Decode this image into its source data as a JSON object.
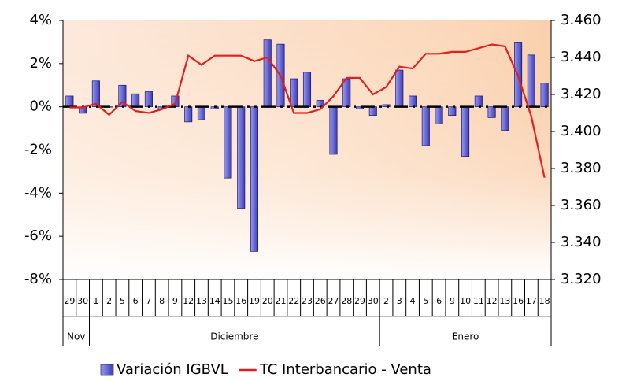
{
  "chart_data": {
    "type": "bar-line",
    "categories": [
      "29",
      "30",
      "1",
      "2",
      "5",
      "6",
      "7",
      "8",
      "9",
      "12",
      "13",
      "14",
      "15",
      "16",
      "19",
      "20",
      "21",
      "22",
      "23",
      "26",
      "27",
      "28",
      "29",
      "30",
      "2",
      "3",
      "4",
      "5",
      "6",
      "9",
      "10",
      "11",
      "12",
      "13",
      "16",
      "17",
      "18"
    ],
    "groups": [
      "Nov",
      "Diciembre",
      "Enero"
    ],
    "series": [
      {
        "name": "Variación IGBVL",
        "type": "bar",
        "color": "#5a5ad0",
        "values": [
          0.5,
          -0.3,
          1.2,
          0.0,
          1.0,
          0.6,
          0.7,
          -0.1,
          0.5,
          -0.7,
          -0.6,
          -0.1,
          -3.3,
          -4.7,
          -6.7,
          3.1,
          2.9,
          1.3,
          1.6,
          0.3,
          -2.2,
          1.3,
          -0.1,
          -0.4,
          0.1,
          1.7,
          0.5,
          -1.8,
          -0.8,
          -0.4,
          -2.3,
          0.5,
          -0.5,
          -1.1,
          3.0,
          2.4,
          1.1
        ]
      },
      {
        "name": "TC Interbancario - Venta",
        "type": "line",
        "axis": "y2",
        "color": "#e02020",
        "values": [
          3.413,
          3.413,
          3.415,
          3.409,
          3.416,
          3.411,
          3.41,
          3.412,
          3.415,
          3.441,
          3.436,
          3.441,
          3.441,
          3.441,
          3.438,
          3.44,
          3.43,
          3.41,
          3.41,
          3.412,
          3.419,
          3.429,
          3.429,
          3.42,
          3.424,
          3.435,
          3.434,
          3.442,
          3.442,
          3.443,
          3.443,
          3.445,
          3.447,
          3.446,
          3.43,
          3.408,
          3.375
        ]
      }
    ],
    "ylim": [
      -8,
      4
    ],
    "yticks": [
      {
        "value": -8,
        "label": "-8%"
      },
      {
        "value": -6,
        "label": "-6%"
      },
      {
        "value": -4,
        "label": "-4%"
      },
      {
        "value": -2,
        "label": "-2%"
      },
      {
        "value": 0,
        "label": "0%"
      },
      {
        "value": 2,
        "label": "2%"
      },
      {
        "value": 4,
        "label": "4%"
      }
    ],
    "y2lim": [
      3.32,
      3.46
    ],
    "y2ticks": [
      {
        "value": 3.32,
        "label": "3.320"
      },
      {
        "value": 3.34,
        "label": "3.340"
      },
      {
        "value": 3.36,
        "label": "3.360"
      },
      {
        "value": 3.38,
        "label": "3.380"
      },
      {
        "value": 3.4,
        "label": "3.400"
      },
      {
        "value": 3.42,
        "label": "3.420"
      },
      {
        "value": 3.44,
        "label": "3.440"
      },
      {
        "value": 3.46,
        "label": "3.460"
      }
    ],
    "legend": "bottom"
  }
}
